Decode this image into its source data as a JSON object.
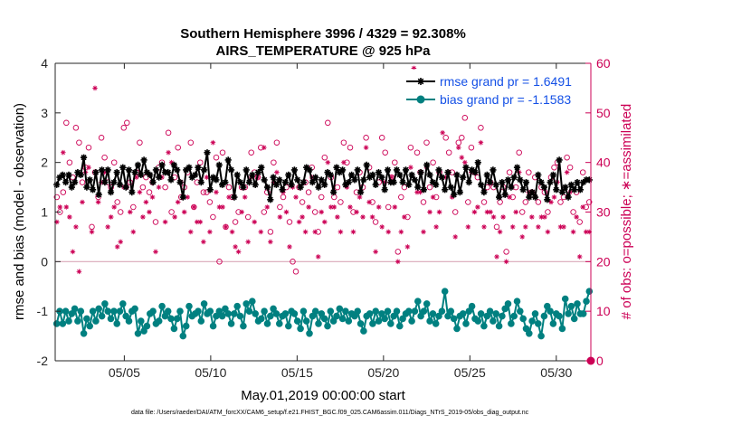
{
  "chart_data": {
    "type": "line",
    "title": "Southern Hemisphere 3996 / 4329 = 92.308%",
    "subtitle": "AIRS_TEMPERATURE @ 925 hPa",
    "xlabel": "May.01,2019 00:00:00 start",
    "ylabel_left": "rmse and bias (model - observation)",
    "ylabel_right": "# of obs: o=possible; ∗=assimilated",
    "footnote": "data file: /Users/raeder/DAI/ATM_forcXX/CAM6_setup/f.e21.FHIST_BGC.f09_025.CAM6assim.011/Diags_NTrS_2019-05/obs_diag_output.nc",
    "x_range": [
      1,
      32
    ],
    "x_ticks": [
      5,
      10,
      15,
      20,
      25,
      30
    ],
    "x_tick_labels": [
      "05/05",
      "05/10",
      "05/15",
      "05/20",
      "05/25",
      "05/30"
    ],
    "ylim_left": [
      -2,
      4
    ],
    "y_ticks_left": [
      "-2",
      "-1",
      "0",
      "1",
      "2",
      "3",
      "4"
    ],
    "ylim_right": [
      0,
      60
    ],
    "y_ticks_right": [
      "0",
      "10",
      "20",
      "30",
      "40",
      "50",
      "60"
    ],
    "series": [
      {
        "name": "rmse grand pr = 1.6491",
        "axis": "left",
        "color": "#000000",
        "values": [
          1.55,
          1.7,
          1.75,
          1.6,
          1.75,
          1.5,
          1.6,
          1.8,
          1.75,
          2.1,
          1.5,
          1.65,
          1.45,
          1.8,
          1.35,
          1.85,
          1.6,
          1.85,
          1.4,
          1.6,
          1.8,
          1.55,
          1.9,
          1.5,
          1.85,
          1.4,
          1.8,
          1.95,
          1.75,
          2.05,
          1.8,
          1.75,
          1.6,
          1.85,
          1.7,
          1.95,
          1.8,
          1.8,
          1.65,
          1.95,
          1.85,
          1.6,
          1.3,
          1.85,
          1.9,
          1.7,
          1.75,
          1.9,
          1.6,
          1.85,
          2.2,
          1.45,
          1.7,
          1.65,
          1.95,
          1.55,
          1.6,
          2.05,
          1.85,
          1.3,
          1.75,
          1.6,
          1.5,
          1.85,
          1.6,
          1.75,
          1.55,
          1.8,
          1.9,
          1.65,
          1.5,
          1.25,
          1.7,
          1.55,
          1.65,
          1.45,
          1.6,
          1.75,
          1.55,
          1.85,
          1.65,
          1.5,
          1.6,
          1.9,
          1.85,
          1.6,
          1.7,
          1.5,
          1.65,
          1.55,
          1.8,
          1.75,
          1.4,
          1.9,
          1.8,
          1.85,
          1.55,
          1.6,
          1.75,
          1.65,
          1.85,
          1.4,
          1.65,
          1.95,
          1.7,
          1.75,
          1.55,
          1.8,
          1.7,
          1.45,
          1.85,
          1.6,
          1.6,
          1.85,
          1.75,
          1.6,
          1.85,
          1.55,
          1.75,
          1.65,
          1.5,
          1.8,
          1.45,
          1.95,
          1.75,
          1.6,
          1.55,
          1.85,
          1.7,
          1.45,
          1.8,
          1.5,
          1.35,
          1.75,
          1.4,
          1.7,
          1.9,
          1.6,
          1.85,
          1.8,
          2.0,
          1.55,
          1.4,
          1.75,
          1.6,
          1.85,
          1.55,
          1.3,
          1.6,
          1.35,
          1.65,
          1.5,
          1.7,
          1.9,
          1.65,
          1.45,
          1.6,
          1.3,
          1.4,
          1.3,
          1.75,
          1.6,
          1.5,
          1.25,
          1.6,
          1.75,
          1.45,
          2.05,
          1.4,
          1.5,
          1.3,
          1.55,
          1.45,
          1.6,
          1.45,
          1.6,
          1.65,
          1.65
        ]
      },
      {
        "name": "bias grand pr = -1.1583",
        "axis": "left",
        "color": "#008080",
        "values": [
          -1.25,
          -1.0,
          -1.25,
          -1.0,
          -1.2,
          -1.05,
          -0.95,
          -1.2,
          -1.0,
          -1.45,
          -1.15,
          -1.3,
          -1.0,
          -1.2,
          -0.95,
          -1.1,
          -0.85,
          -1.0,
          -1.15,
          -1.0,
          -1.25,
          -1.0,
          -0.85,
          -1.1,
          -1.2,
          -1.0,
          -0.95,
          -1.45,
          -1.2,
          -1.4,
          -1.3,
          -1.05,
          -1.0,
          -1.25,
          -1.2,
          -0.9,
          -1.1,
          -1.0,
          -1.15,
          -1.35,
          -1.15,
          -1.0,
          -1.5,
          -1.3,
          -0.9,
          -1.1,
          -1.05,
          -1.0,
          -1.2,
          -0.85,
          -1.05,
          -1.0,
          -1.3,
          -1.1,
          -1.0,
          -1.1,
          -0.95,
          -1.05,
          -1.25,
          -1.05,
          -0.9,
          -1.1,
          -1.3,
          -0.85,
          -1.0,
          -0.8,
          -1.05,
          -1.2,
          -1.15,
          -1.0,
          -1.25,
          -1.1,
          -0.95,
          -1.05,
          -1.25,
          -1.1,
          -1.05,
          -1.3,
          -1.0,
          -1.05,
          -1.2,
          -1.35,
          -1.0,
          -1.2,
          -1.45,
          -1.1,
          -1.0,
          -1.25,
          -1.05,
          -1.15,
          -1.3,
          -1.0,
          -1.2,
          -1.1,
          -0.95,
          -1.15,
          -1.0,
          -1.2,
          -1.05,
          -1.1,
          -1.0,
          -1.25,
          -1.4,
          -1.1,
          -1.05,
          -1.25,
          -1.0,
          -1.2,
          -1.05,
          -1.15,
          -1.0,
          -1.25,
          -1.1,
          -1.0,
          -1.3,
          -1.15,
          -1.05,
          -1.0,
          -1.2,
          -1.0,
          -0.8,
          -1.1,
          -1.0,
          -0.85,
          -1.2,
          -1.05,
          -1.25,
          -1.1,
          -1.0,
          -0.6,
          -1.1,
          -1.0,
          -1.15,
          -1.35,
          -1.1,
          -1.05,
          -1.25,
          -1.0,
          -0.9,
          -1.15,
          -1.2,
          -1.05,
          -1.3,
          -1.1,
          -1.0,
          -1.2,
          -1.05,
          -1.3,
          -1.1,
          -0.95,
          -0.85,
          -1.25,
          -1.1,
          -0.8,
          -1.0,
          -1.15,
          -1.35,
          -1.45,
          -1.2,
          -1.05,
          -1.25,
          -1.5,
          -1.1,
          -0.9,
          -1.0,
          -1.25,
          -1.05,
          -1.1,
          -1.35,
          -0.75,
          -1.05,
          -0.9,
          -1.15,
          -0.85,
          -1.05,
          -1.05,
          -0.8,
          -0.6
        ]
      }
    ],
    "obs_possible": {
      "name": "o=possible",
      "axis": "right",
      "color": "#cc0055",
      "values": [
        33,
        30,
        34,
        48,
        40,
        37,
        47,
        44,
        36,
        39,
        43,
        27,
        38,
        33,
        45,
        41,
        36,
        35,
        40,
        32,
        30,
        47,
        48,
        36,
        31,
        38,
        44,
        35,
        37,
        34,
        36,
        28,
        39,
        40,
        35,
        46,
        30,
        37,
        43,
        33,
        35,
        38,
        44,
        31,
        36,
        40,
        34,
        34,
        32,
        29,
        41,
        20,
        42,
        27,
        35,
        33,
        28,
        30,
        35,
        35,
        29,
        42,
        38,
        37,
        43,
        30,
        34,
        26,
        40,
        44,
        31,
        33,
        35,
        28,
        20,
        18,
        35,
        32,
        36,
        34,
        39,
        30,
        26,
        33,
        41,
        48,
        37,
        33,
        35,
        32,
        44,
        40,
        43,
        30,
        34,
        38,
        35,
        45,
        39,
        32,
        28,
        36,
        45,
        42,
        31,
        37,
        40,
        22,
        33,
        35,
        29,
        43,
        55,
        42,
        38,
        32,
        44,
        35,
        40,
        33,
        38,
        52,
        45,
        42,
        38,
        30,
        44,
        45,
        49,
        32,
        43,
        38,
        37,
        47,
        32,
        35,
        36,
        35,
        27,
        32,
        35,
        22,
        38,
        33,
        35,
        42,
        30,
        32,
        38,
        34,
        37,
        32,
        35,
        34,
        30,
        37,
        39,
        40,
        32,
        33,
        41,
        39,
        30,
        34,
        28,
        38,
        31,
        32
      ]
    },
    "obs_assimilated": {
      "name": "∗=assimilated",
      "axis": "right",
      "color": "#cc0055",
      "values": [
        28,
        31,
        42,
        31,
        29,
        22,
        27,
        18,
        32,
        38,
        39,
        26,
        55,
        32,
        36,
        38,
        27,
        29,
        31,
        23,
        24,
        35,
        35,
        30,
        26,
        37,
        34,
        29,
        32,
        30,
        33,
        22,
        35,
        37,
        28,
        42,
        40,
        29,
        32,
        36,
        30,
        33,
        26,
        31,
        28,
        28,
        24,
        37,
        26,
        44,
        34,
        31,
        31,
        27,
        33,
        26,
        23,
        22,
        30,
        33,
        24,
        37,
        28,
        37,
        26,
        43,
        31,
        24,
        36,
        38,
        29,
        34,
        30,
        23,
        35,
        33,
        28,
        29,
        26,
        31,
        37,
        26,
        21,
        30,
        28,
        40,
        31,
        31,
        29,
        26,
        40,
        35,
        31,
        26,
        30,
        33,
        29,
        43,
        32,
        29,
        22,
        31,
        27,
        36,
        26,
        37,
        31,
        20,
        26,
        29,
        23,
        39,
        59,
        34,
        34,
        26,
        39,
        30,
        33,
        27,
        30,
        46,
        37,
        38,
        33,
        25,
        43,
        41,
        40,
        27,
        38,
        30,
        31,
        44,
        27,
        30,
        30,
        29,
        21,
        26,
        29,
        20,
        33,
        27,
        30,
        38,
        25,
        27,
        34,
        29,
        33,
        27,
        29,
        29,
        26,
        32,
        33,
        36,
        27,
        27,
        38,
        34,
        26,
        29,
        21,
        31,
        26,
        26
      ]
    }
  }
}
